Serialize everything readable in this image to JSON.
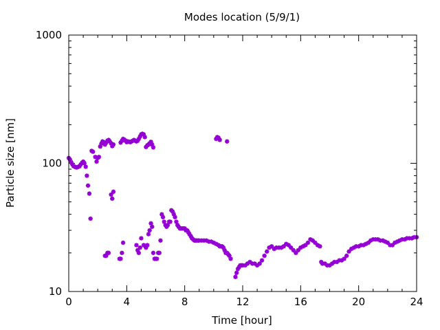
{
  "chart_data": {
    "type": "scatter",
    "title": "Modes location (5/9/1)",
    "xlabel": "Time [hour]",
    "ylabel": "Particle size [nm]",
    "xlim": [
      0,
      24
    ],
    "ylim": [
      10,
      1000
    ],
    "yscale": "log",
    "grid": false,
    "legend": "none",
    "marker_color": "#9400d3",
    "x_ticks": [
      0,
      4,
      8,
      12,
      16,
      20,
      24
    ],
    "x_tick_labels": [
      "0",
      "4",
      "8",
      "12",
      "16",
      "20",
      "24"
    ],
    "y_ticks": [
      10,
      100,
      1000
    ],
    "y_tick_labels": [
      "10",
      "100",
      "1000"
    ],
    "series": [
      {
        "values": [
          [
            0.0,
            110
          ],
          [
            0.08,
            107
          ],
          [
            0.17,
            102
          ],
          [
            0.25,
            98
          ],
          [
            0.33,
            95
          ],
          [
            0.42,
            94
          ],
          [
            0.5,
            93
          ],
          [
            0.58,
            93
          ],
          [
            0.67,
            94
          ],
          [
            0.75,
            95
          ],
          [
            0.83,
            98
          ],
          [
            0.92,
            101
          ],
          [
            1.0,
            103
          ],
          [
            1.08,
            100
          ],
          [
            1.17,
            94
          ],
          [
            1.25,
            80
          ],
          [
            1.33,
            67
          ],
          [
            1.42,
            58
          ],
          [
            1.5,
            37
          ],
          [
            1.58,
            125
          ],
          [
            1.67,
            123
          ],
          [
            1.83,
            112
          ],
          [
            1.92,
            103
          ],
          [
            2.0,
            110
          ],
          [
            2.08,
            112
          ],
          [
            2.17,
            135
          ],
          [
            2.25,
            142
          ],
          [
            2.33,
            148
          ],
          [
            2.42,
            146
          ],
          [
            2.5,
            140
          ],
          [
            2.58,
            145
          ],
          [
            2.67,
            150
          ],
          [
            2.75,
            152
          ],
          [
            2.83,
            148
          ],
          [
            2.92,
            143
          ],
          [
            3.0,
            136
          ],
          [
            3.08,
            140
          ],
          [
            3.58,
            145
          ],
          [
            3.67,
            150
          ],
          [
            3.75,
            155
          ],
          [
            3.83,
            153
          ],
          [
            3.92,
            150
          ],
          [
            4.0,
            146
          ],
          [
            4.08,
            148
          ],
          [
            4.17,
            147
          ],
          [
            4.25,
            146
          ],
          [
            4.33,
            148
          ],
          [
            4.42,
            150
          ],
          [
            4.5,
            152
          ],
          [
            4.58,
            150
          ],
          [
            4.67,
            148
          ],
          [
            4.75,
            150
          ],
          [
            4.83,
            155
          ],
          [
            4.92,
            162
          ],
          [
            5.0,
            168
          ],
          [
            5.08,
            170
          ],
          [
            5.17,
            168
          ],
          [
            5.25,
            160
          ],
          [
            5.33,
            134
          ],
          [
            5.42,
            138
          ],
          [
            5.5,
            140
          ],
          [
            5.58,
            143
          ],
          [
            5.67,
            147
          ],
          [
            5.75,
            140
          ],
          [
            5.83,
            133
          ],
          [
            10.17,
            155
          ],
          [
            10.25,
            160
          ],
          [
            10.33,
            158
          ],
          [
            10.42,
            152
          ],
          [
            10.92,
            148
          ],
          [
            2.92,
            57
          ],
          [
            3.0,
            53
          ],
          [
            3.08,
            60
          ],
          [
            3.5,
            18
          ],
          [
            3.58,
            18
          ],
          [
            3.67,
            20
          ],
          [
            3.75,
            24
          ],
          [
            2.5,
            19
          ],
          [
            2.58,
            19
          ],
          [
            2.67,
            20
          ],
          [
            2.75,
            20
          ],
          [
            4.67,
            23
          ],
          [
            4.75,
            21
          ],
          [
            4.83,
            20
          ],
          [
            4.92,
            22
          ],
          [
            5.0,
            26
          ],
          [
            5.17,
            23
          ],
          [
            5.33,
            22
          ],
          [
            5.42,
            23
          ],
          [
            5.5,
            28
          ],
          [
            5.58,
            30
          ],
          [
            5.67,
            34
          ],
          [
            5.75,
            32
          ],
          [
            5.83,
            20
          ],
          [
            5.92,
            18
          ],
          [
            6.0,
            18
          ],
          [
            6.08,
            18
          ],
          [
            6.17,
            20
          ],
          [
            6.25,
            20
          ],
          [
            6.33,
            25
          ],
          [
            6.42,
            40
          ],
          [
            6.5,
            38
          ],
          [
            6.58,
            35
          ],
          [
            6.67,
            33
          ],
          [
            6.75,
            32
          ],
          [
            6.83,
            33
          ],
          [
            6.92,
            35
          ],
          [
            7.0,
            35
          ],
          [
            7.08,
            43
          ],
          [
            7.17,
            42
          ],
          [
            7.25,
            40
          ],
          [
            7.33,
            38
          ],
          [
            7.42,
            35
          ],
          [
            7.5,
            33
          ],
          [
            7.58,
            32
          ],
          [
            7.67,
            31
          ],
          [
            7.75,
            31
          ],
          [
            7.83,
            31
          ],
          [
            7.92,
            31
          ],
          [
            8.0,
            31
          ],
          [
            8.08,
            30
          ],
          [
            8.17,
            30
          ],
          [
            8.25,
            29
          ],
          [
            8.33,
            28
          ],
          [
            8.42,
            27
          ],
          [
            8.5,
            26
          ],
          [
            8.58,
            25.5
          ],
          [
            8.67,
            25
          ],
          [
            8.75,
            25
          ],
          [
            8.83,
            25
          ],
          [
            8.92,
            25
          ],
          [
            9.0,
            25
          ],
          [
            9.17,
            25
          ],
          [
            9.33,
            25
          ],
          [
            9.5,
            25
          ],
          [
            9.67,
            24.5
          ],
          [
            9.83,
            24.5
          ],
          [
            10.0,
            24
          ],
          [
            10.17,
            23.5
          ],
          [
            10.33,
            23
          ],
          [
            10.42,
            22.5
          ],
          [
            10.5,
            22.5
          ],
          [
            10.58,
            22.5
          ],
          [
            10.67,
            22
          ],
          [
            10.75,
            21
          ],
          [
            10.83,
            20
          ],
          [
            10.92,
            20
          ],
          [
            11.0,
            19.5
          ],
          [
            11.08,
            19
          ],
          [
            11.17,
            18
          ],
          [
            11.5,
            13
          ],
          [
            11.58,
            14
          ],
          [
            11.67,
            15
          ],
          [
            11.75,
            15.5
          ],
          [
            11.83,
            16
          ],
          [
            11.92,
            16
          ],
          [
            12.0,
            16
          ],
          [
            12.17,
            16
          ],
          [
            12.33,
            16.5
          ],
          [
            12.5,
            17
          ],
          [
            12.67,
            16.5
          ],
          [
            12.83,
            16.5
          ],
          [
            13.0,
            16
          ],
          [
            13.17,
            16.5
          ],
          [
            13.33,
            17.5
          ],
          [
            13.5,
            19
          ],
          [
            13.67,
            20.5
          ],
          [
            13.83,
            22
          ],
          [
            14.0,
            22.5
          ],
          [
            14.17,
            21.5
          ],
          [
            14.33,
            22
          ],
          [
            14.5,
            22
          ],
          [
            14.67,
            22
          ],
          [
            14.83,
            22.5
          ],
          [
            15.0,
            23.5
          ],
          [
            15.17,
            23
          ],
          [
            15.33,
            22
          ],
          [
            15.5,
            21
          ],
          [
            15.67,
            20
          ],
          [
            15.83,
            21
          ],
          [
            16.0,
            22
          ],
          [
            16.17,
            22.5
          ],
          [
            16.33,
            23
          ],
          [
            16.5,
            24
          ],
          [
            16.67,
            25.5
          ],
          [
            16.83,
            25
          ],
          [
            17.0,
            24
          ],
          [
            17.17,
            23
          ],
          [
            17.33,
            22.5
          ],
          [
            17.42,
            17
          ],
          [
            17.5,
            16.5
          ],
          [
            17.67,
            16.5
          ],
          [
            17.83,
            16
          ],
          [
            18.0,
            16
          ],
          [
            18.17,
            16.5
          ],
          [
            18.33,
            17
          ],
          [
            18.5,
            17
          ],
          [
            18.67,
            17.5
          ],
          [
            18.83,
            17.5
          ],
          [
            19.0,
            18
          ],
          [
            19.17,
            19
          ],
          [
            19.33,
            20.5
          ],
          [
            19.5,
            21.5
          ],
          [
            19.67,
            22
          ],
          [
            19.83,
            22.5
          ],
          [
            20.0,
            22.5
          ],
          [
            20.17,
            23
          ],
          [
            20.33,
            23
          ],
          [
            20.5,
            23.5
          ],
          [
            20.67,
            24
          ],
          [
            20.83,
            25
          ],
          [
            21.0,
            25.5
          ],
          [
            21.17,
            25.5
          ],
          [
            21.33,
            25.5
          ],
          [
            21.5,
            25
          ],
          [
            21.67,
            25
          ],
          [
            21.83,
            24.5
          ],
          [
            22.0,
            24
          ],
          [
            22.17,
            23
          ],
          [
            22.33,
            23
          ],
          [
            22.5,
            24
          ],
          [
            22.67,
            24.5
          ],
          [
            22.83,
            25
          ],
          [
            23.0,
            25.5
          ],
          [
            23.17,
            25.5
          ],
          [
            23.33,
            26
          ],
          [
            23.5,
            26
          ],
          [
            23.67,
            26
          ],
          [
            23.83,
            26.5
          ],
          [
            24.0,
            26.5
          ]
        ]
      }
    ]
  }
}
